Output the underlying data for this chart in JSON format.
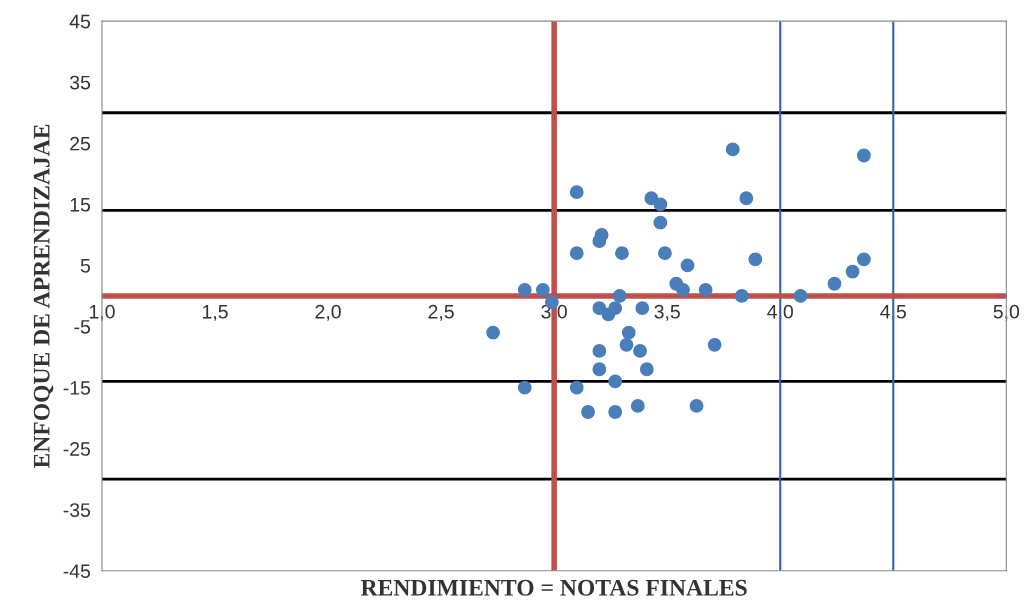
{
  "chart_data": {
    "type": "scatter",
    "xlabel": "RENDIMIENTO = NOTAS FINALES",
    "ylabel": "ENFOQUE DE APRENDIZAJAE",
    "xlim": [
      1.0,
      5.0
    ],
    "ylim": [
      -45,
      45
    ],
    "xticks": [
      {
        "value": 1.0,
        "label": "1,0"
      },
      {
        "value": 1.5,
        "label": "1,5"
      },
      {
        "value": 2.0,
        "label": "2,0"
      },
      {
        "value": 2.5,
        "label": "2,5"
      },
      {
        "value": 3.0,
        "label": "3,0"
      },
      {
        "value": 3.5,
        "label": "3,5"
      },
      {
        "value": 4.0,
        "label": "4,0"
      },
      {
        "value": 4.5,
        "label": "4,5"
      },
      {
        "value": 5.0,
        "label": "5,0"
      }
    ],
    "yticks": [
      -45,
      -35,
      -25,
      -15,
      -5,
      5,
      15,
      25,
      35,
      45
    ],
    "grid": false,
    "legend": false,
    "marker": "circle",
    "ref_lines": [
      {
        "axis": "y",
        "value": 30,
        "color": "#000000"
      },
      {
        "axis": "y",
        "value": 14,
        "color": "#000000"
      },
      {
        "axis": "y",
        "value": -14,
        "color": "#000000"
      },
      {
        "axis": "y",
        "value": -30,
        "color": "#000000"
      },
      {
        "axis": "x",
        "value": 4.0,
        "color": "#2e64b0"
      },
      {
        "axis": "x",
        "value": 4.5,
        "color": "#2e64b0"
      },
      {
        "axis": "y",
        "value": 0,
        "color": "#c0504d"
      },
      {
        "axis": "x",
        "value": 3.0,
        "color": "#c0504d"
      }
    ],
    "series": [
      {
        "color": "#4a7ebb",
        "x": [
          2.73,
          2.87,
          2.95,
          2.99,
          2.87,
          3.1,
          3.1,
          3.1,
          3.2,
          3.21,
          3.3,
          3.2,
          3.24,
          3.27,
          3.29,
          3.39,
          3.2,
          3.2,
          3.27,
          3.15,
          3.27,
          3.37,
          3.33,
          3.32,
          3.38,
          3.41,
          3.43,
          3.47,
          3.47,
          3.49,
          3.54,
          3.57,
          3.59,
          3.67,
          3.71,
          3.63,
          3.79,
          3.85,
          3.89,
          3.83,
          4.09,
          4.24,
          4.32,
          4.37,
          4.37
        ],
        "values": [
          -6,
          1,
          1,
          -1,
          -15,
          -15,
          17,
          7,
          9,
          10,
          7,
          -2,
          -3,
          -2,
          0,
          -2,
          -9,
          -12,
          -14,
          -19,
          -19,
          -18,
          -6,
          -8,
          -9,
          -12,
          16,
          15,
          12,
          7,
          2,
          1,
          5,
          1,
          -8,
          -18,
          24,
          16,
          6,
          0,
          0,
          2,
          4,
          6,
          23
        ]
      }
    ]
  }
}
